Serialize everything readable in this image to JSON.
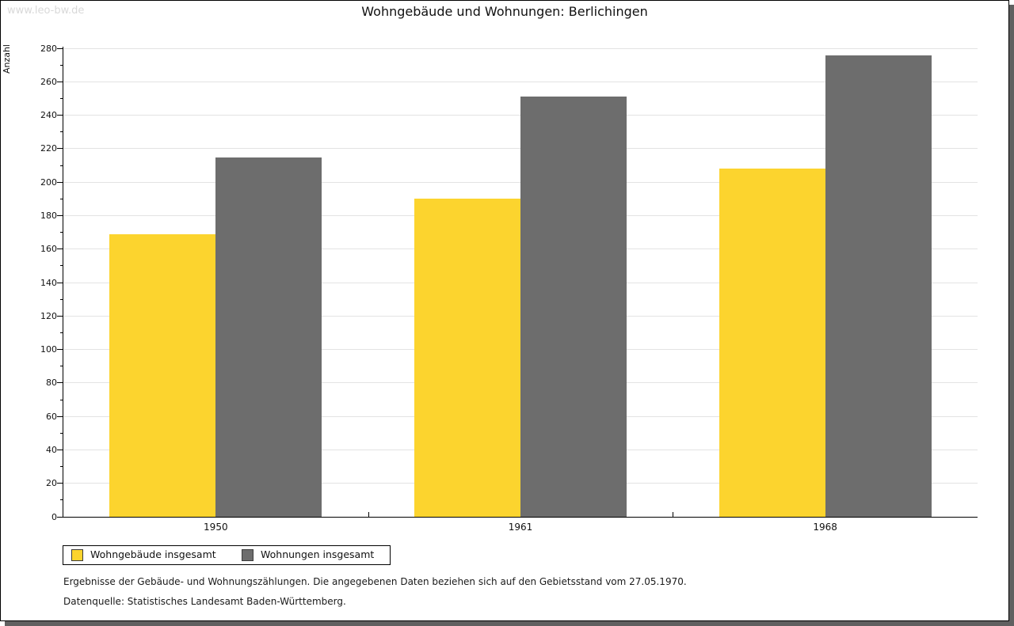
{
  "watermark": "www.leo-bw.de",
  "title": "Wohngebäude und Wohnungen: Berlichingen",
  "chart_data": {
    "type": "bar",
    "title": "Wohngebäude und Wohnungen: Berlichingen",
    "categories": [
      "1950",
      "1961",
      "1968"
    ],
    "series": [
      {
        "name": "Wohngebäude insgesamt",
        "color": "#FCD42E",
        "values": [
          169,
          190,
          208
        ]
      },
      {
        "name": "Wohnungen insgesamt",
        "color": "#6D6D6D",
        "values": [
          215,
          251,
          276
        ]
      }
    ],
    "xlabel": "",
    "ylabel": "Anzahl",
    "ylim": [
      0,
      281
    ],
    "ytick_step": 20,
    "ytick_minor_step": 10,
    "grid": true,
    "gridline_color": "#e3e3e3",
    "legend_position": "bottom-left"
  },
  "footer": {
    "line1": "Ergebnisse der Gebäude- und Wohnungszählungen. Die angegebenen Daten beziehen sich auf den Gebietsstand vom 27.05.1970.",
    "line2": "Datenquelle: Statistisches Landesamt Baden-Württemberg."
  }
}
